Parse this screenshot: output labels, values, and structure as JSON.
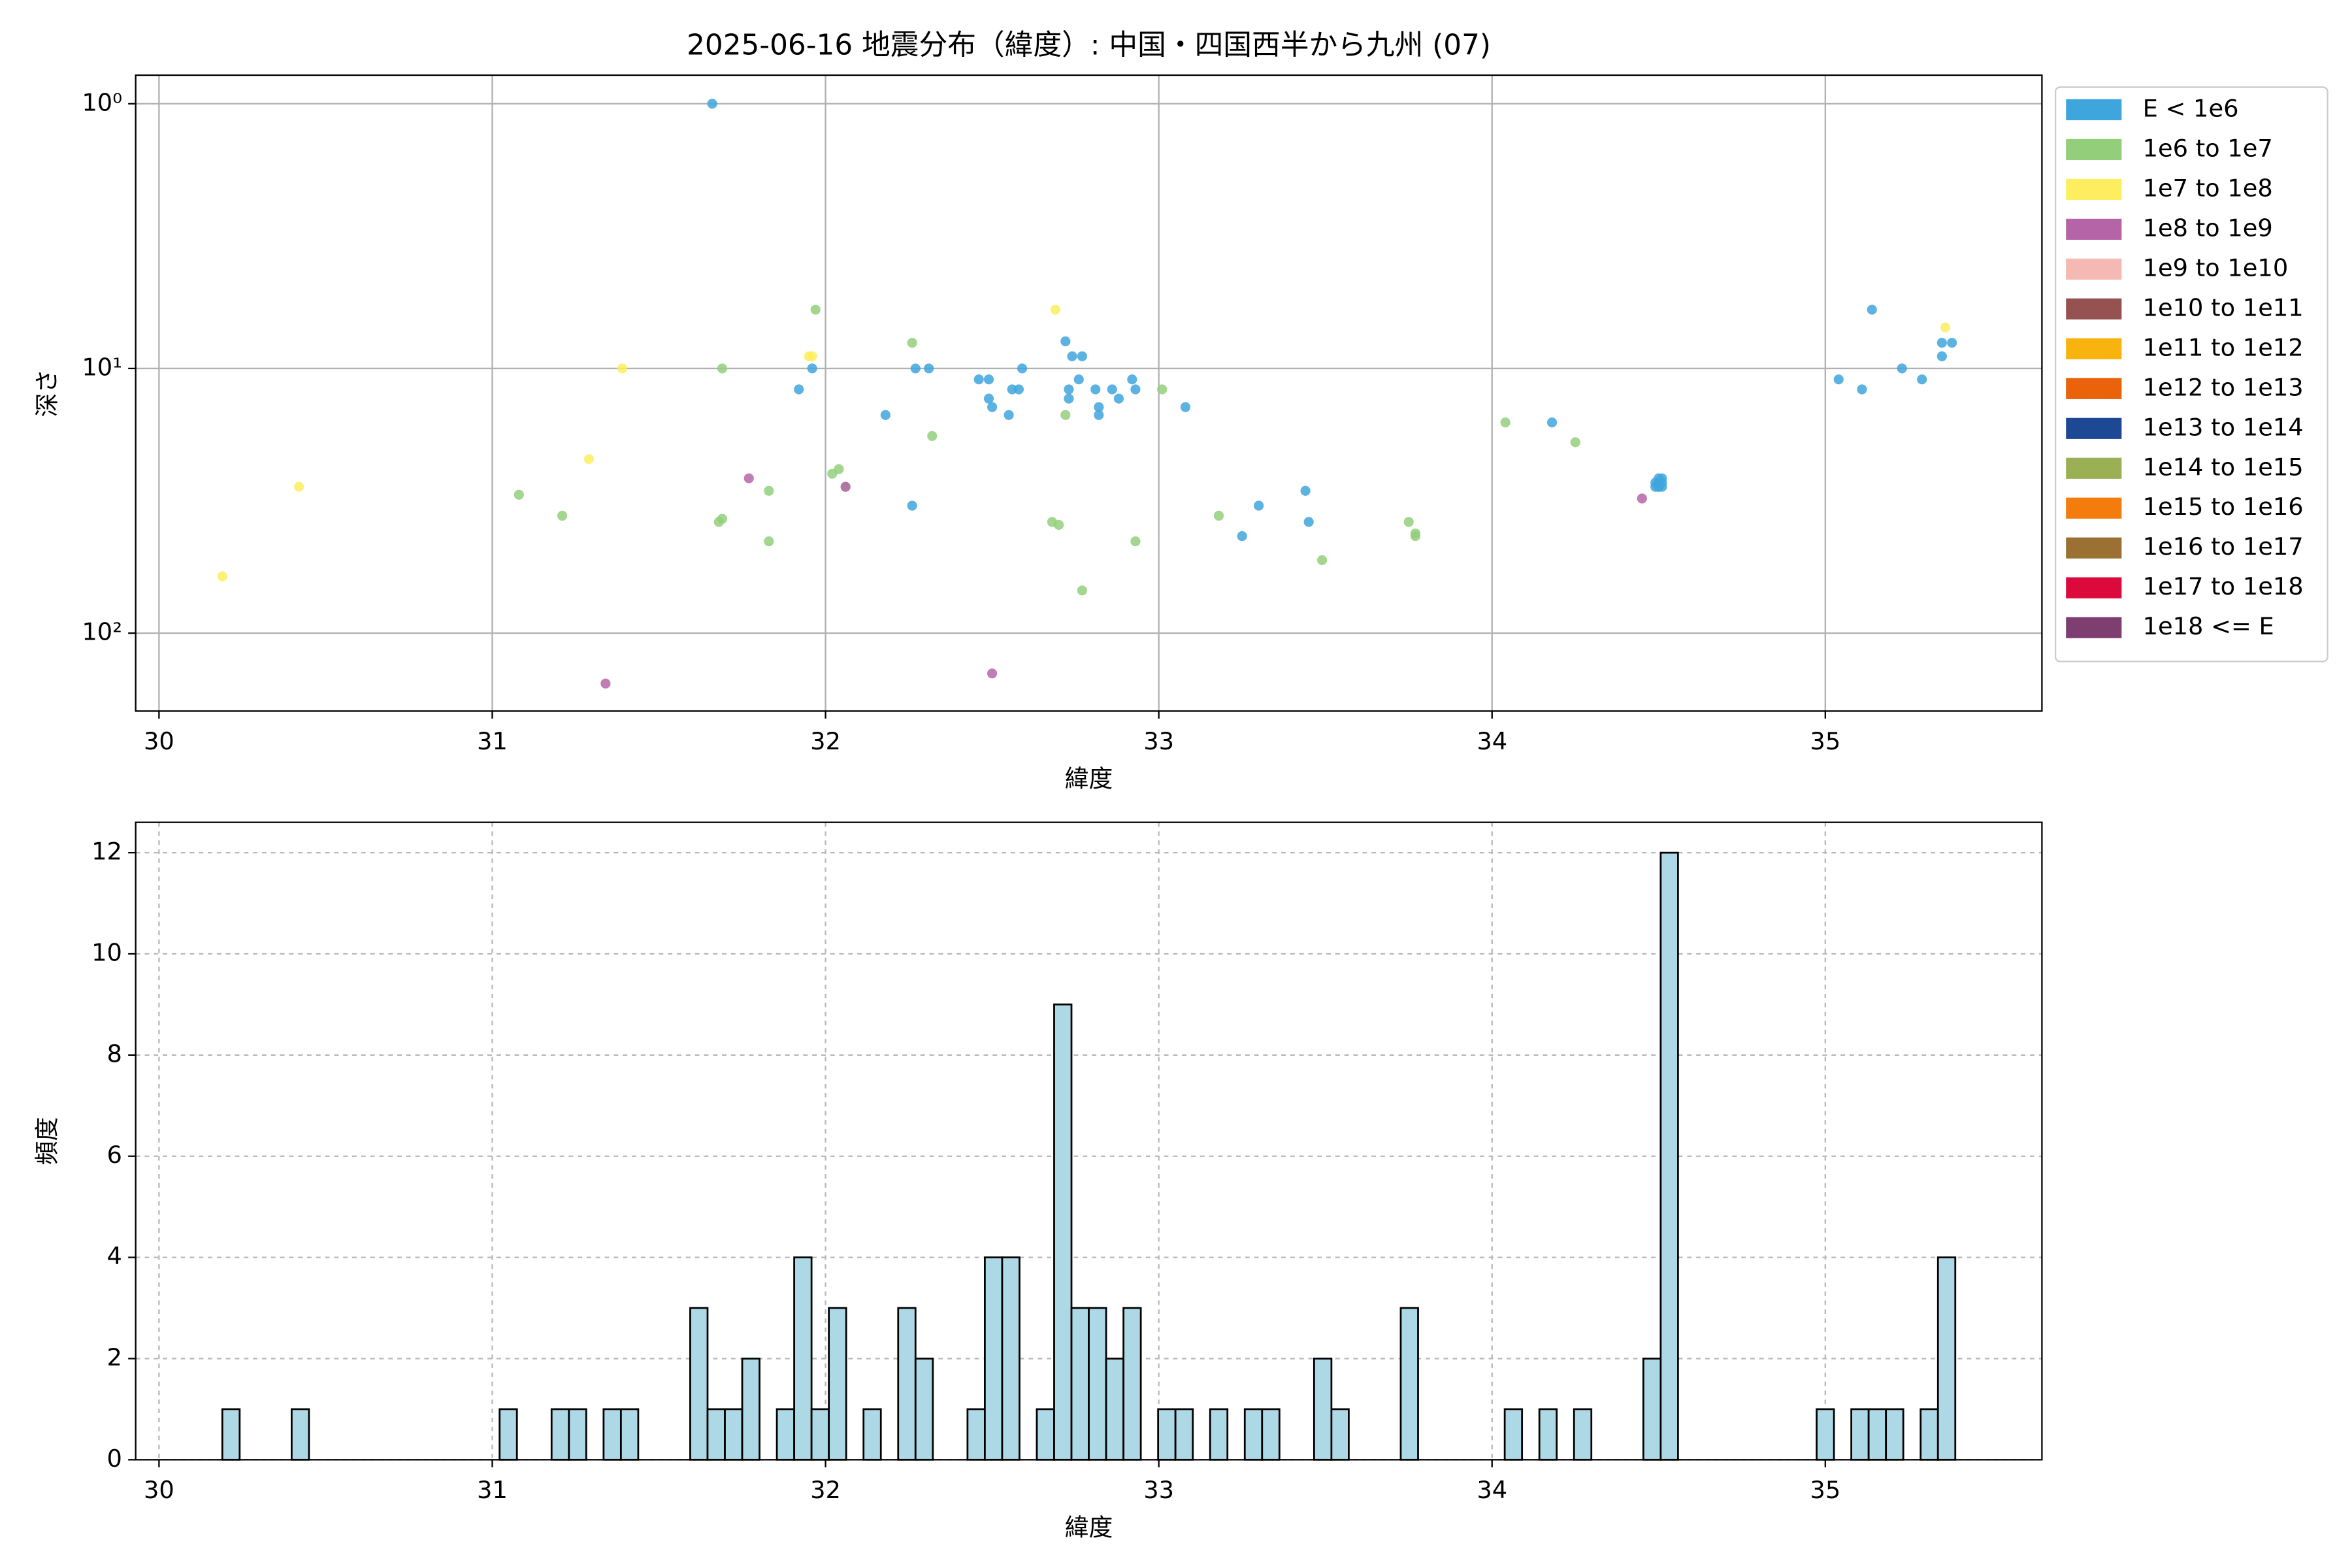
{
  "chart_data": [
    {
      "type": "scatter",
      "title": "2025-06-16 地震分布（緯度）: 中国・四国西半から九州 (07)",
      "xlabel": "緯度",
      "ylabel": "深さ",
      "log_y": true,
      "grid": true,
      "legend": "outside upper right",
      "xlim": [
        29.93,
        35.65
      ],
      "ylim": [
        197,
        0.78
      ],
      "xticks": [
        30,
        31,
        32,
        33,
        34,
        35
      ],
      "yticks": [
        {
          "value": 1,
          "label": "10⁰"
        },
        {
          "value": 10,
          "label": "10¹"
        },
        {
          "value": 100,
          "label": "10²"
        }
      ],
      "series": [
        {
          "name": "E < 1e6",
          "color": "#3fa6dd",
          "x": [
            31.66,
            31.92,
            31.96,
            32.18,
            32.26,
            32.27,
            32.31,
            32.46,
            32.49,
            32.49,
            32.5,
            32.55,
            32.56,
            32.58,
            32.59,
            32.72,
            32.73,
            32.73,
            32.74,
            32.76,
            32.77,
            32.81,
            32.82,
            32.82,
            32.86,
            32.88,
            32.92,
            32.93,
            33.08,
            33.25,
            33.3,
            33.44,
            33.45,
            34.18,
            34.49,
            34.5,
            34.5,
            34.5,
            34.51,
            34.51,
            34.5,
            34.51,
            34.49,
            34.5,
            35.04,
            35.11,
            35.14,
            35.23,
            35.29,
            35.35,
            35.35,
            35.38
          ],
          "values": [
            1,
            12,
            10,
            15,
            33,
            10,
            10,
            11,
            11,
            13,
            14,
            15,
            12,
            12,
            10,
            7.9,
            12,
            13,
            9,
            11,
            9,
            12,
            14,
            15,
            12,
            13,
            11,
            12,
            14,
            43,
            33,
            29,
            38,
            16,
            27,
            26,
            27,
            28,
            27,
            26,
            28,
            28,
            28,
            27,
            11,
            12,
            6,
            10,
            11,
            8,
            9,
            8
          ]
        },
        {
          "name": "1e6 to 1e7",
          "color": "#93cf7b",
          "x": [
            31.08,
            31.21,
            31.68,
            31.69,
            31.69,
            31.83,
            31.83,
            31.97,
            32.02,
            32.04,
            32.06,
            32.26,
            32.32,
            32.68,
            32.7,
            32.72,
            32.77,
            32.93,
            33.01,
            33.18,
            33.49,
            33.75,
            33.77,
            33.77,
            34.04,
            34.25
          ],
          "values": [
            30,
            36,
            38,
            37,
            10,
            29,
            45,
            6,
            25,
            24,
            28,
            8,
            18,
            38,
            39,
            15,
            69,
            45,
            12,
            36,
            53,
            38,
            42,
            43,
            16,
            19
          ]
        },
        {
          "name": "1e7 to 1e8",
          "color": "#fcee5e",
          "x": [
            30.19,
            30.42,
            31.29,
            31.39,
            31.95,
            31.96,
            32.69,
            35.36
          ],
          "values": [
            61,
            28,
            22,
            10,
            9,
            9,
            6,
            7
          ]
        },
        {
          "name": "1e8 to 1e9",
          "color": "#b565a7",
          "x": [
            31.34,
            31.77,
            32.06,
            32.5,
            34.45
          ],
          "values": [
            155,
            26,
            28,
            142,
            31
          ]
        },
        {
          "name": "1e9 to 1e10",
          "color": "#f4b9b2",
          "x": [],
          "values": []
        },
        {
          "name": "1e10 to 1e11",
          "color": "#955251",
          "x": [],
          "values": []
        },
        {
          "name": "1e11 to 1e12",
          "color": "#f9b30e",
          "x": [],
          "values": []
        },
        {
          "name": "1e12 to 1e13",
          "color": "#ea6209",
          "x": [],
          "values": []
        },
        {
          "name": "1e13 to 1e14",
          "color": "#1d4893",
          "x": [],
          "values": []
        },
        {
          "name": "1e14 to 1e15",
          "color": "#9bb054",
          "x": [],
          "values": []
        },
        {
          "name": "1e15 to 1e16",
          "color": "#f47c0d",
          "x": [],
          "values": []
        },
        {
          "name": "1e16 to 1e17",
          "color": "#9a7133",
          "x": [],
          "values": []
        },
        {
          "name": "1e17 to 1e18",
          "color": "#dc0a3c",
          "x": [],
          "values": []
        },
        {
          "name": "1e18 <= E",
          "color": "#7e3f70",
          "x": [],
          "values": []
        }
      ]
    },
    {
      "type": "histogram",
      "xlabel": "緯度",
      "ylabel": "頻度",
      "grid": true,
      "grid_style": "dashed",
      "color": "#add8e6",
      "edgecolor": "#000000",
      "xlim": [
        29.93,
        35.65
      ],
      "ylim": [
        0,
        12.6
      ],
      "xticks": [
        30,
        31,
        32,
        33,
        34,
        35
      ],
      "yticks": [
        0,
        2,
        4,
        6,
        8,
        10,
        12
      ],
      "bins": [
        30.19,
        30.242,
        30.294,
        30.346,
        30.398,
        30.45,
        30.502,
        30.554,
        30.606,
        30.658,
        30.71,
        30.762,
        30.814,
        30.866,
        30.918,
        30.97,
        31.022,
        31.074,
        31.126,
        31.178,
        31.23,
        31.282,
        31.334,
        31.386,
        31.438,
        31.49,
        31.542,
        31.594,
        31.646,
        31.698,
        31.75,
        31.802,
        31.854,
        31.906,
        31.958,
        32.01,
        32.062,
        32.114,
        32.166,
        32.218,
        32.27,
        32.322,
        32.374,
        32.426,
        32.478,
        32.53,
        32.582,
        32.634,
        32.686,
        32.738,
        32.79,
        32.842,
        32.894,
        32.946,
        32.998,
        33.05,
        33.102,
        33.154,
        33.206,
        33.258,
        33.31,
        33.362,
        33.414,
        33.466,
        33.518,
        33.57,
        33.622,
        33.674,
        33.726,
        33.778,
        33.83,
        33.882,
        33.934,
        33.986,
        34.038,
        34.09,
        34.142,
        34.194,
        34.246,
        34.298,
        34.35,
        34.402,
        34.454,
        34.506,
        34.558,
        34.61,
        34.662,
        34.714,
        34.766,
        34.818,
        34.87,
        34.922,
        34.974,
        35.026,
        35.078,
        35.13,
        35.182,
        35.234,
        35.286,
        35.338,
        35.39
      ],
      "values": [
        1,
        0,
        0,
        0,
        1,
        0,
        0,
        0,
        0,
        0,
        0,
        0,
        0,
        0,
        0,
        0,
        1,
        0,
        0,
        1,
        1,
        0,
        1,
        1,
        0,
        0,
        0,
        3,
        1,
        1,
        2,
        0,
        1,
        4,
        1,
        3,
        0,
        1,
        0,
        3,
        2,
        0,
        0,
        1,
        4,
        4,
        0,
        1,
        9,
        3,
        3,
        2,
        3,
        0,
        1,
        1,
        0,
        1,
        0,
        1,
        1,
        0,
        0,
        2,
        1,
        0,
        0,
        0,
        3,
        0,
        0,
        0,
        0,
        0,
        1,
        0,
        1,
        0,
        1,
        0,
        0,
        0,
        2,
        12,
        0,
        0,
        0,
        0,
        0,
        0,
        0,
        0,
        1,
        0,
        1,
        1,
        1,
        0,
        1,
        4
      ]
    }
  ]
}
